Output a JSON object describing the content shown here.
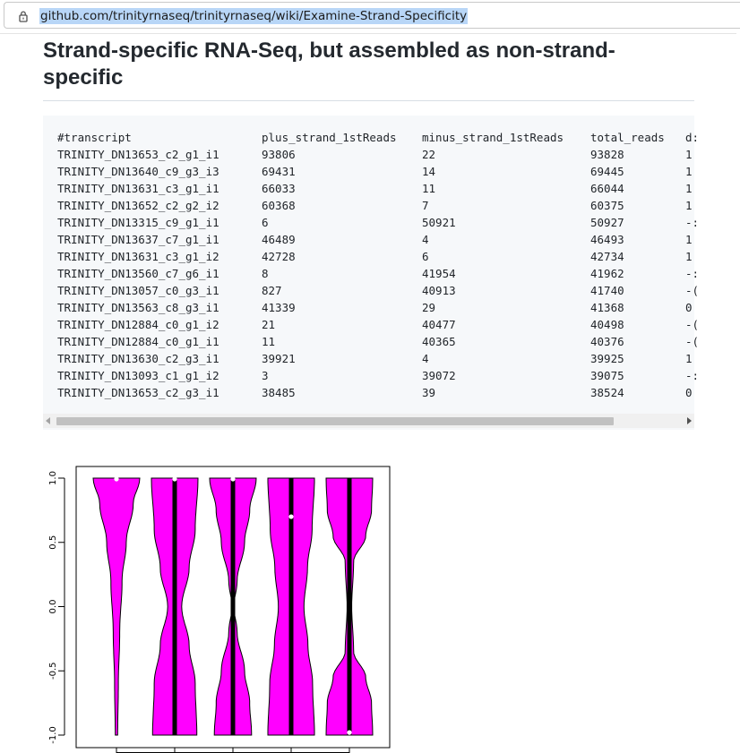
{
  "browser": {
    "url": "github.com/trinityrnaseq/trinityrnaseq/wiki/Examine-Strand-Specificity"
  },
  "page": {
    "title": "Strand-specific RNA-Seq, but assembled as non-strand-specific"
  },
  "code_table": {
    "header": [
      "#transcript",
      "plus_strand_1stReads",
      "minus_strand_1stReads",
      "total_reads",
      "d:"
    ],
    "rows": [
      [
        "TRINITY_DN13653_c2_g1_i1",
        "93806",
        "22",
        "93828",
        "1"
      ],
      [
        "TRINITY_DN13640_c9_g3_i3",
        "69431",
        "14",
        "69445",
        "1"
      ],
      [
        "TRINITY_DN13631_c3_g1_i1",
        "66033",
        "11",
        "66044",
        "1"
      ],
      [
        "TRINITY_DN13652_c2_g2_i2",
        "60368",
        "7",
        "60375",
        "1"
      ],
      [
        "TRINITY_DN13315_c9_g1_i1",
        "6",
        "50921",
        "50927",
        "-:"
      ],
      [
        "TRINITY_DN13637_c7_g1_i1",
        "46489",
        "4",
        "46493",
        "1"
      ],
      [
        "TRINITY_DN13631_c3_g1_i2",
        "42728",
        "6",
        "42734",
        "1"
      ],
      [
        "TRINITY_DN13560_c7_g6_i1",
        "8",
        "41954",
        "41962",
        "-:"
      ],
      [
        "TRINITY_DN13057_c0_g3_i1",
        "827",
        "40913",
        "41740",
        "-("
      ],
      [
        "TRINITY_DN13563_c8_g3_i1",
        "41339",
        "29",
        "41368",
        "0"
      ],
      [
        "TRINITY_DN12884_c0_g1_i2",
        "21",
        "40477",
        "40498",
        "-("
      ],
      [
        "TRINITY_DN12884_c0_g1_i1",
        "11",
        "40365",
        "40376",
        "-("
      ],
      [
        "TRINITY_DN13630_c2_g3_i1",
        "39921",
        "4",
        "39925",
        "1"
      ],
      [
        "TRINITY_DN13093_c1_g1_i2",
        "3",
        "39072",
        "39075",
        "-:"
      ],
      [
        "TRINITY_DN13653_c2_g3_i1",
        "38485",
        "39",
        "38524",
        "0"
      ]
    ]
  },
  "chart_data": {
    "type": "violin",
    "series": [
      {
        "profile": [
          [
            -1.0,
            0.05
          ],
          [
            -0.6,
            0.08
          ],
          [
            -0.2,
            0.14
          ],
          [
            0.2,
            0.24
          ],
          [
            0.5,
            0.42
          ],
          [
            0.8,
            0.72
          ],
          [
            1.0,
            1.0
          ]
        ],
        "median": 1.0,
        "q1": 1.0,
        "q3": 1.0
      },
      {
        "profile": [
          [
            -1.0,
            0.95
          ],
          [
            -0.6,
            0.88
          ],
          [
            -0.3,
            0.62
          ],
          [
            0.0,
            0.3
          ],
          [
            0.3,
            0.62
          ],
          [
            0.6,
            0.88
          ],
          [
            1.0,
            1.0
          ]
        ],
        "median": 1.0,
        "q1": -1.0,
        "q3": 1.0
      },
      {
        "profile": [
          [
            -1.0,
            0.8
          ],
          [
            -0.75,
            0.72
          ],
          [
            -0.5,
            0.5
          ],
          [
            -0.2,
            0.18
          ],
          [
            0.0,
            0.04
          ],
          [
            0.2,
            0.18
          ],
          [
            0.5,
            0.5
          ],
          [
            0.75,
            0.72
          ],
          [
            1.0,
            1.0
          ]
        ],
        "median": 1.0,
        "q1": -1.0,
        "q3": 1.0
      },
      {
        "profile": [
          [
            -1.0,
            1.0
          ],
          [
            -0.6,
            0.92
          ],
          [
            -0.3,
            0.72
          ],
          [
            0.0,
            0.55
          ],
          [
            0.3,
            0.7
          ],
          [
            0.6,
            0.9
          ],
          [
            1.0,
            1.0
          ]
        ],
        "median": 0.7,
        "q1": -1.0,
        "q3": 1.0
      },
      {
        "profile": [
          [
            -1.0,
            1.0
          ],
          [
            -0.75,
            0.95
          ],
          [
            -0.55,
            0.7
          ],
          [
            -0.35,
            0.18
          ],
          [
            0.0,
            0.1
          ],
          [
            0.35,
            0.18
          ],
          [
            0.55,
            0.7
          ],
          [
            0.75,
            0.95
          ],
          [
            1.0,
            1.0
          ]
        ],
        "median": -0.98,
        "q1": -1.0,
        "q3": 1.0
      }
    ],
    "ylim": [
      -1.0,
      1.0
    ],
    "yticks": [
      "-1.0",
      "-0.5",
      "0.0",
      "0.5",
      "1.0"
    ],
    "colors": {
      "fill": "#ff00ff",
      "median": "#ffffff",
      "box": "#000000"
    },
    "grid": false
  }
}
